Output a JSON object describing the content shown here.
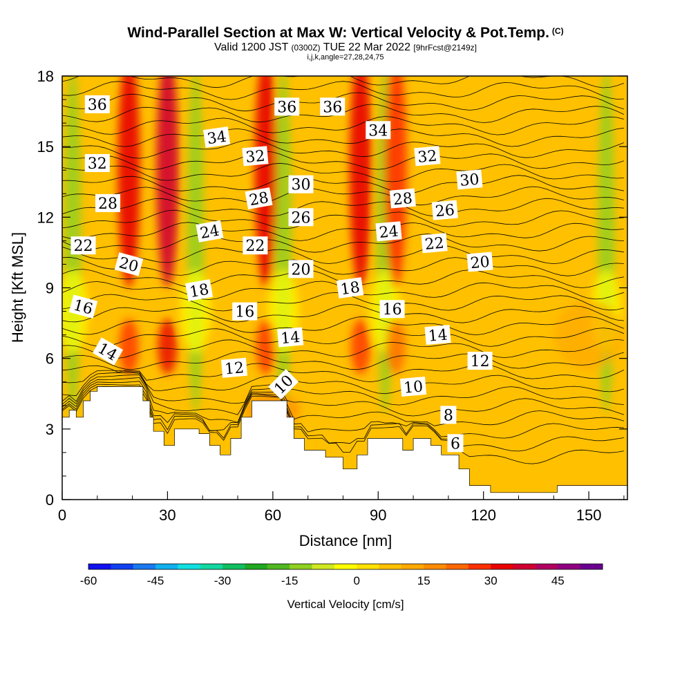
{
  "title": {
    "main": "Wind-Parallel Section at Max W: Vertical Velocity & Pot.Temp.",
    "main_unit": "(C)",
    "valid_prefix": "Valid 1200 JST",
    "valid_z": "(0300Z)",
    "valid_date": "TUE 22 Mar 2022",
    "fcst": "[9hrFcst@2149z]",
    "indices": "i,j,k,angle=27,28,24,75"
  },
  "chart_data": {
    "type": "heatmap",
    "xlabel": "Distance [nm]",
    "ylabel": "Height [Kft MSL]",
    "xlim": [
      0,
      161
    ],
    "ylim": [
      0,
      18
    ],
    "x_ticks": [
      "0",
      "30",
      "60",
      "90",
      "120",
      "150"
    ],
    "y_ticks": [
      "0",
      "3",
      "6",
      "9",
      "12",
      "15",
      "18"
    ],
    "colorbar": {
      "label": "Vertical Velocity [cm/s]",
      "range": [
        -60,
        50
      ],
      "step": 5,
      "tick_labels": [
        "-60",
        "-45",
        "-30",
        "-15",
        "0",
        "15",
        "30",
        "45"
      ],
      "colors": [
        "#1010ee",
        "#1040f0",
        "#1a78f0",
        "#10b0f0",
        "#10e0e0",
        "#10d8a0",
        "#10c060",
        "#20a820",
        "#50b820",
        "#90d020",
        "#d0e820",
        "#ffff00",
        "#ffe000",
        "#ffc000",
        "#ffa800",
        "#ff8c00",
        "#ff6800",
        "#ff3000",
        "#e80000",
        "#d00030",
        "#b00060",
        "#900080",
        "#6a0090"
      ]
    },
    "updraft_columns": [
      {
        "x": 30,
        "w_cm_s": 35
      },
      {
        "x": 19,
        "w_cm_s": 30
      },
      {
        "x": 58,
        "w_cm_s": 30
      },
      {
        "x": 85,
        "w_cm_s": 30
      },
      {
        "x": 95,
        "w_cm_s": 25
      }
    ],
    "downdraft_columns": [
      {
        "x": 3,
        "w_cm_s": -15
      },
      {
        "x": 38,
        "w_cm_s": -15
      },
      {
        "x": 63,
        "w_cm_s": -15
      },
      {
        "x": 92,
        "w_cm_s": -12
      },
      {
        "x": 155,
        "w_cm_s": -12
      }
    ],
    "terrain_kft": [
      {
        "x": 0,
        "h": 3.5
      },
      {
        "x": 2,
        "h": 3.5
      },
      {
        "x": 2,
        "h": 3.8
      },
      {
        "x": 4,
        "h": 3.8
      },
      {
        "x": 4,
        "h": 3.5
      },
      {
        "x": 6,
        "h": 3.5
      },
      {
        "x": 6,
        "h": 4.2
      },
      {
        "x": 8,
        "h": 4.2
      },
      {
        "x": 8,
        "h": 4.6
      },
      {
        "x": 10,
        "h": 4.6
      },
      {
        "x": 10,
        "h": 4.8
      },
      {
        "x": 23,
        "h": 4.8
      },
      {
        "x": 23,
        "h": 4.2
      },
      {
        "x": 25,
        "h": 4.2
      },
      {
        "x": 25,
        "h": 3.5
      },
      {
        "x": 26,
        "h": 3.5
      },
      {
        "x": 26,
        "h": 2.9
      },
      {
        "x": 29,
        "h": 2.9
      },
      {
        "x": 29,
        "h": 2.3
      },
      {
        "x": 32,
        "h": 2.3
      },
      {
        "x": 32,
        "h": 3.0
      },
      {
        "x": 39,
        "h": 3.0
      },
      {
        "x": 39,
        "h": 2.8
      },
      {
        "x": 42,
        "h": 2.8
      },
      {
        "x": 42,
        "h": 2.3
      },
      {
        "x": 45,
        "h": 2.3
      },
      {
        "x": 45,
        "h": 1.9
      },
      {
        "x": 48,
        "h": 1.9
      },
      {
        "x": 48,
        "h": 2.6
      },
      {
        "x": 51,
        "h": 2.6
      },
      {
        "x": 51,
        "h": 3.5
      },
      {
        "x": 54,
        "h": 3.5
      },
      {
        "x": 54,
        "h": 4.2
      },
      {
        "x": 64,
        "h": 4.2
      },
      {
        "x": 64,
        "h": 3.5
      },
      {
        "x": 66,
        "h": 3.5
      },
      {
        "x": 66,
        "h": 2.6
      },
      {
        "x": 69,
        "h": 2.6
      },
      {
        "x": 69,
        "h": 2.1
      },
      {
        "x": 75,
        "h": 2.1
      },
      {
        "x": 75,
        "h": 1.8
      },
      {
        "x": 80,
        "h": 1.8
      },
      {
        "x": 80,
        "h": 1.3
      },
      {
        "x": 84,
        "h": 1.3
      },
      {
        "x": 84,
        "h": 1.9
      },
      {
        "x": 87,
        "h": 1.9
      },
      {
        "x": 87,
        "h": 2.6
      },
      {
        "x": 97,
        "h": 2.6
      },
      {
        "x": 97,
        "h": 2.1
      },
      {
        "x": 100,
        "h": 2.1
      },
      {
        "x": 100,
        "h": 2.6
      },
      {
        "x": 105,
        "h": 2.6
      },
      {
        "x": 105,
        "h": 2.3
      },
      {
        "x": 108,
        "h": 2.3
      },
      {
        "x": 108,
        "h": 1.9
      },
      {
        "x": 113,
        "h": 1.9
      },
      {
        "x": 113,
        "h": 1.3
      },
      {
        "x": 116,
        "h": 1.3
      },
      {
        "x": 116,
        "h": 0.6
      },
      {
        "x": 122,
        "h": 0.6
      },
      {
        "x": 122,
        "h": 0.3
      },
      {
        "x": 141,
        "h": 0.3
      },
      {
        "x": 141,
        "h": 0.6
      },
      {
        "x": 161,
        "h": 0.6
      }
    ],
    "isentrope_labels": [
      {
        "text": "36",
        "x": 10,
        "y": 16.8,
        "rot": 0
      },
      {
        "text": "36",
        "x": 64,
        "y": 16.7,
        "rot": 0
      },
      {
        "text": "36",
        "x": 77,
        "y": 16.7,
        "rot": 0
      },
      {
        "text": "34",
        "x": 44,
        "y": 15.4,
        "rot": -8
      },
      {
        "text": "34",
        "x": 90,
        "y": 15.7,
        "rot": 0
      },
      {
        "text": "32",
        "x": 10,
        "y": 14.3,
        "rot": 0
      },
      {
        "text": "32",
        "x": 55,
        "y": 14.6,
        "rot": -5
      },
      {
        "text": "32",
        "x": 104,
        "y": 14.6,
        "rot": -5
      },
      {
        "text": "30",
        "x": 68,
        "y": 13.4,
        "rot": 0
      },
      {
        "text": "30",
        "x": 116,
        "y": 13.6,
        "rot": -5
      },
      {
        "text": "28",
        "x": 13,
        "y": 12.6,
        "rot": 0
      },
      {
        "text": "28",
        "x": 56,
        "y": 12.8,
        "rot": -10
      },
      {
        "text": "28",
        "x": 97,
        "y": 12.8,
        "rot": -5
      },
      {
        "text": "26",
        "x": 68,
        "y": 12.0,
        "rot": 0
      },
      {
        "text": "26",
        "x": 109,
        "y": 12.3,
        "rot": -5
      },
      {
        "text": "24",
        "x": 42,
        "y": 11.4,
        "rot": -10
      },
      {
        "text": "24",
        "x": 93,
        "y": 11.4,
        "rot": -5
      },
      {
        "text": "22",
        "x": 6,
        "y": 10.8,
        "rot": 0
      },
      {
        "text": "22",
        "x": 55,
        "y": 10.8,
        "rot": 0
      },
      {
        "text": "22",
        "x": 106,
        "y": 10.9,
        "rot": -5
      },
      {
        "text": "20",
        "x": 19,
        "y": 10.0,
        "rot": 15
      },
      {
        "text": "20",
        "x": 68,
        "y": 9.8,
        "rot": 0
      },
      {
        "text": "20",
        "x": 119,
        "y": 10.1,
        "rot": -5
      },
      {
        "text": "18",
        "x": 39,
        "y": 8.9,
        "rot": -10
      },
      {
        "text": "18",
        "x": 82,
        "y": 9.0,
        "rot": -8
      },
      {
        "text": "16",
        "x": 6,
        "y": 8.2,
        "rot": 15
      },
      {
        "text": "16",
        "x": 52,
        "y": 8.0,
        "rot": 0
      },
      {
        "text": "16",
        "x": 94,
        "y": 8.1,
        "rot": 0
      },
      {
        "text": "14",
        "x": 13,
        "y": 6.3,
        "rot": 30
      },
      {
        "text": "14",
        "x": 65,
        "y": 6.9,
        "rot": -5
      },
      {
        "text": "14",
        "x": 107,
        "y": 7.0,
        "rot": -5
      },
      {
        "text": "12",
        "x": 49,
        "y": 5.6,
        "rot": -5
      },
      {
        "text": "12",
        "x": 119,
        "y": 5.9,
        "rot": 0
      },
      {
        "text": "10",
        "x": 63,
        "y": 4.9,
        "rot": -45
      },
      {
        "text": "10",
        "x": 100,
        "y": 4.8,
        "rot": -5
      },
      {
        "text": "8",
        "x": 110,
        "y": 3.6,
        "rot": 0
      },
      {
        "text": "6",
        "x": 112,
        "y": 2.4,
        "rot": 0
      }
    ]
  }
}
